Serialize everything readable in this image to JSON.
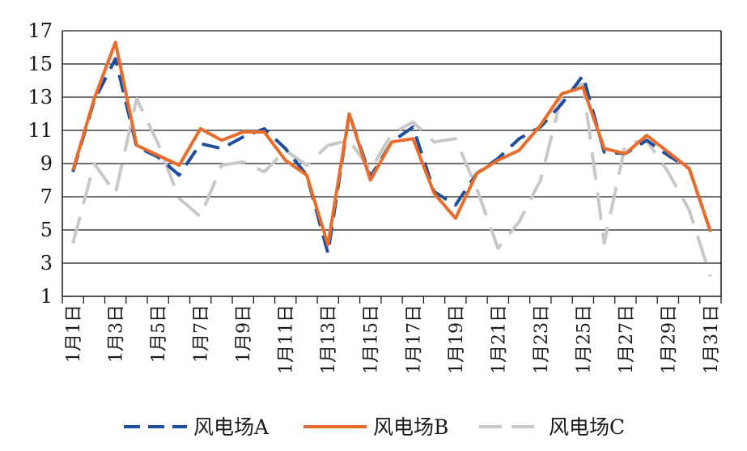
{
  "chart_data": {
    "type": "line",
    "x": [
      "1月1日",
      "1月2日",
      "1月3日",
      "1月4日",
      "1月5日",
      "1月6日",
      "1月7日",
      "1月8日",
      "1月9日",
      "1月10日",
      "1月11日",
      "1月12日",
      "1月13日",
      "1月14日",
      "1月15日",
      "1月16日",
      "1月17日",
      "1月18日",
      "1月19日",
      "1月20日",
      "1月21日",
      "1月22日",
      "1月23日",
      "1月24日",
      "1月25日",
      "1月26日",
      "1月27日",
      "1月28日",
      "1月29日",
      "1月30日",
      "1月31日"
    ],
    "x_tick_labels": [
      "1月1日",
      "1月3日",
      "1月5日",
      "1月7日",
      "1月9日",
      "1月11日",
      "1月13日",
      "1月15日",
      "1月17日",
      "1月19日",
      "1月21日",
      "1月23日",
      "1月25日",
      "1月27日",
      "1月29日",
      "1月31日"
    ],
    "ylim": [
      1,
      17
    ],
    "yticks": [
      1,
      3,
      5,
      7,
      9,
      11,
      13,
      15,
      17
    ],
    "grid": "horizontal",
    "legend_position": "bottom",
    "series": [
      {
        "name": "风电场A",
        "color": "#1f4e9c",
        "style": "dashed",
        "values": [
          8.5,
          12.8,
          15.3,
          10.0,
          9.4,
          8.3,
          10.2,
          9.9,
          10.6,
          11.1,
          9.9,
          8.3,
          3.6,
          12.0,
          8.2,
          10.3,
          11.2,
          7.3,
          6.5,
          8.4,
          9.3,
          10.5,
          11.2,
          12.6,
          14.3,
          9.7,
          9.6,
          10.4,
          9.5,
          8.7,
          4.9
        ]
      },
      {
        "name": "风电场B",
        "color": "#e96c2a",
        "style": "solid",
        "values": [
          8.6,
          12.9,
          16.3,
          10.1,
          9.5,
          8.9,
          11.1,
          10.4,
          10.9,
          10.9,
          9.2,
          8.3,
          4.1,
          12.0,
          8.0,
          10.3,
          10.5,
          7.2,
          5.7,
          8.4,
          9.2,
          9.8,
          11.3,
          13.2,
          13.6,
          9.9,
          9.6,
          10.7,
          9.7,
          8.7,
          4.9
        ]
      },
      {
        "name": "风电场C",
        "color": "#c8c8c8",
        "style": "dashed",
        "values": [
          4.2,
          9.0,
          7.2,
          12.9,
          10.2,
          6.9,
          5.8,
          8.9,
          9.1,
          8.5,
          9.8,
          8.9,
          10.1,
          10.4,
          8.6,
          10.8,
          11.5,
          10.3,
          10.5,
          7.5,
          3.9,
          5.5,
          8.0,
          13.1,
          13.8,
          4.2,
          10.2,
          10.4,
          8.5,
          6.2,
          2.2
        ]
      }
    ]
  }
}
